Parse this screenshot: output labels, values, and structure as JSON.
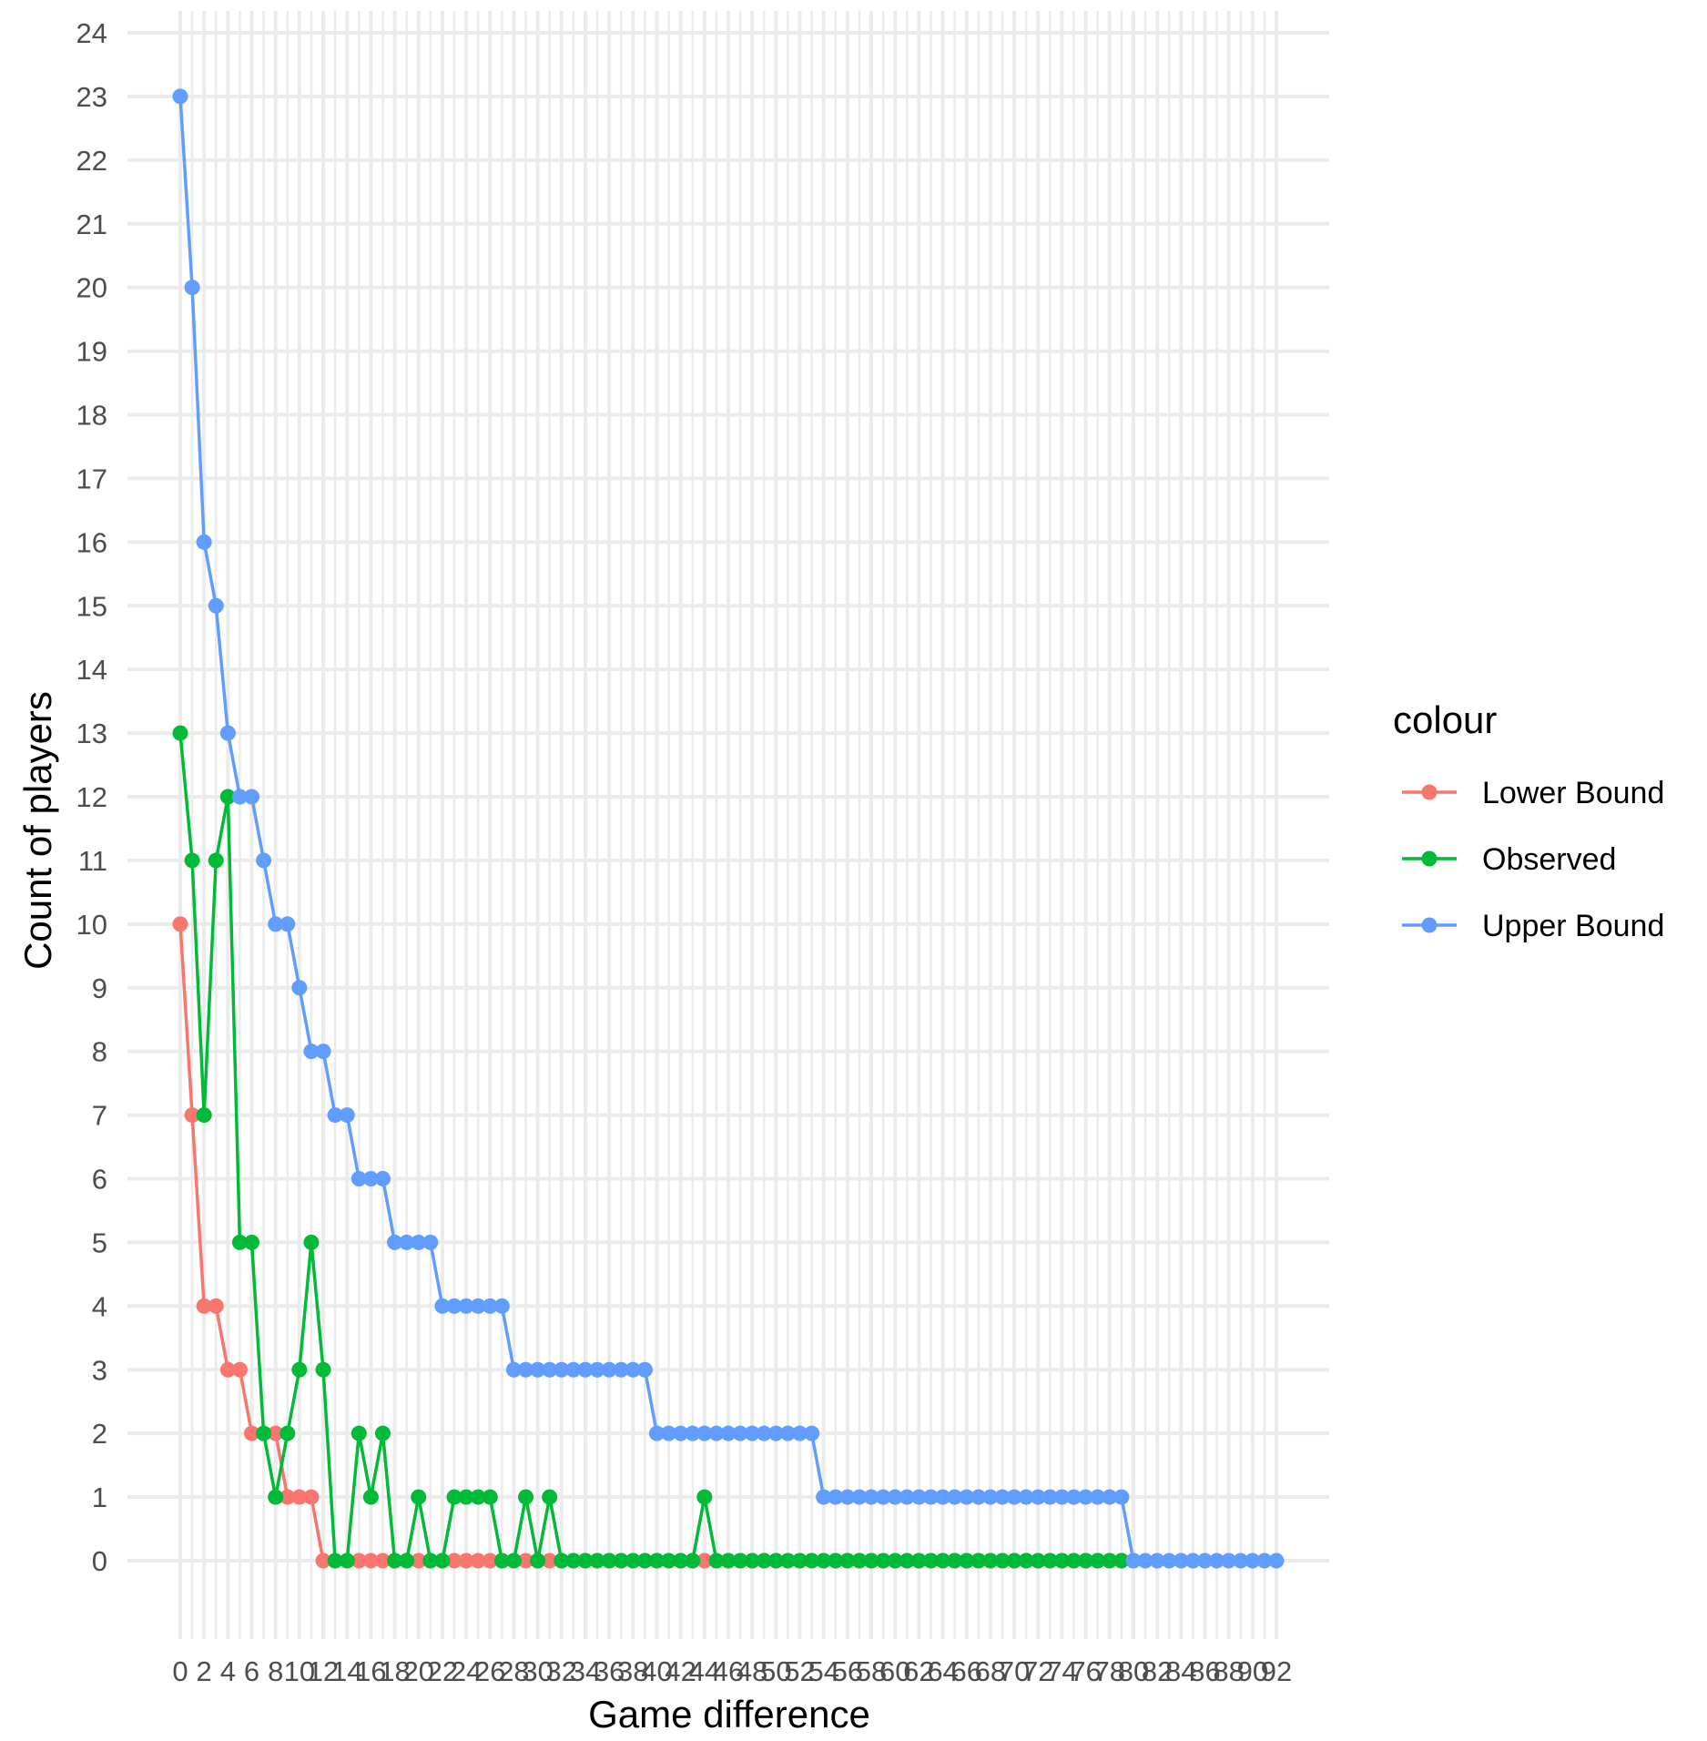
{
  "chart_data": {
    "type": "line",
    "xlabel": "Game difference",
    "ylabel": "Count of players",
    "xlim": [
      0,
      92
    ],
    "ylim": [
      0,
      24
    ],
    "x_ticks": [
      0,
      2,
      4,
      6,
      8,
      10,
      12,
      14,
      16,
      18,
      20,
      22,
      24,
      26,
      28,
      30,
      32,
      34,
      36,
      38,
      40,
      42,
      44,
      46,
      48,
      50,
      52,
      54,
      56,
      58,
      60,
      62,
      64,
      66,
      68,
      70,
      72,
      74,
      76,
      78,
      80,
      82,
      84,
      86,
      88,
      90,
      92
    ],
    "y_ticks": [
      0,
      1,
      2,
      3,
      4,
      5,
      6,
      7,
      8,
      9,
      10,
      11,
      12,
      13,
      14,
      15,
      16,
      17,
      18,
      19,
      20,
      21,
      22,
      23,
      24
    ],
    "grid": true,
    "legend": {
      "title": "colour",
      "position": "right"
    },
    "series": [
      {
        "name": "Lower Bound",
        "color": "#F8766D",
        "x": [
          0,
          1,
          2,
          3,
          4,
          5,
          6,
          7,
          8,
          9,
          10,
          11,
          12,
          13,
          14,
          15,
          16,
          17,
          18,
          19,
          20,
          21,
          22,
          23,
          24,
          25,
          26,
          27,
          28,
          29,
          30,
          31,
          32,
          33,
          34,
          35,
          36,
          37,
          38,
          39,
          40,
          41,
          42,
          43,
          44,
          45,
          46,
          47,
          48,
          49,
          50,
          51,
          52,
          53,
          54,
          55,
          56,
          57,
          58,
          59,
          60,
          61,
          62,
          63,
          64,
          65,
          66,
          67,
          68,
          69,
          70,
          71,
          72,
          73,
          74,
          75,
          76,
          77,
          78,
          79,
          80
        ],
        "y": [
          10,
          7,
          4,
          4,
          3,
          3,
          2,
          2,
          2,
          1,
          1,
          1,
          0,
          0,
          0,
          0,
          0,
          0,
          0,
          0,
          0,
          0,
          0,
          0,
          0,
          0,
          0,
          0,
          0,
          0,
          0,
          0,
          0,
          0,
          0,
          0,
          0,
          0,
          0,
          0,
          0,
          0,
          0,
          0,
          0,
          0,
          0,
          0,
          0,
          0,
          0,
          0,
          0,
          0,
          0,
          0,
          0,
          0,
          0,
          0,
          0,
          0,
          0,
          0,
          0,
          0,
          0,
          0,
          0,
          0,
          0,
          0,
          0,
          0,
          0,
          0,
          0,
          0,
          0,
          0,
          0
        ]
      },
      {
        "name": "Observed",
        "color": "#00BA38",
        "x": [
          0,
          1,
          2,
          3,
          4,
          5,
          6,
          7,
          8,
          9,
          10,
          11,
          12,
          13,
          14,
          15,
          16,
          17,
          18,
          19,
          20,
          21,
          22,
          23,
          24,
          25,
          26,
          27,
          28,
          29,
          30,
          31,
          32,
          33,
          34,
          35,
          36,
          37,
          38,
          39,
          40,
          41,
          42,
          43,
          44,
          45,
          46,
          47,
          48,
          49,
          50,
          51,
          52,
          53,
          54,
          55,
          56,
          57,
          58,
          59,
          60,
          61,
          62,
          63,
          64,
          65,
          66,
          67,
          68,
          69,
          70,
          71,
          72,
          73,
          74,
          75,
          76,
          77,
          78,
          79,
          80
        ],
        "y": [
          13,
          11,
          7,
          11,
          12,
          5,
          5,
          2,
          1,
          2,
          3,
          5,
          3,
          0,
          0,
          2,
          1,
          2,
          0,
          0,
          1,
          0,
          0,
          1,
          1,
          1,
          1,
          0,
          0,
          1,
          0,
          1,
          0,
          0,
          0,
          0,
          0,
          0,
          0,
          0,
          0,
          0,
          0,
          0,
          1,
          0,
          0,
          0,
          0,
          0,
          0,
          0,
          0,
          0,
          0,
          0,
          0,
          0,
          0,
          0,
          0,
          0,
          0,
          0,
          0,
          0,
          0,
          0,
          0,
          0,
          0,
          0,
          0,
          0,
          0,
          0,
          0,
          0,
          0,
          0,
          0
        ]
      },
      {
        "name": "Upper Bound",
        "color": "#619CFF",
        "x": [
          0,
          1,
          2,
          3,
          4,
          5,
          6,
          7,
          8,
          9,
          10,
          11,
          12,
          13,
          14,
          15,
          16,
          17,
          18,
          19,
          20,
          21,
          22,
          23,
          24,
          25,
          26,
          27,
          28,
          29,
          30,
          31,
          32,
          33,
          34,
          35,
          36,
          37,
          38,
          39,
          40,
          41,
          42,
          43,
          44,
          45,
          46,
          47,
          48,
          49,
          50,
          51,
          52,
          53,
          54,
          55,
          56,
          57,
          58,
          59,
          60,
          61,
          62,
          63,
          64,
          65,
          66,
          67,
          68,
          69,
          70,
          71,
          72,
          73,
          74,
          75,
          76,
          77,
          78,
          79,
          80,
          81,
          82,
          83,
          84,
          85,
          86,
          87,
          88,
          89,
          90,
          91,
          92
        ],
        "y": [
          23,
          20,
          16,
          15,
          13,
          12,
          12,
          11,
          10,
          10,
          9,
          8,
          8,
          7,
          7,
          6,
          6,
          6,
          5,
          5,
          5,
          5,
          4,
          4,
          4,
          4,
          4,
          4,
          3,
          3,
          3,
          3,
          3,
          3,
          3,
          3,
          3,
          3,
          3,
          3,
          2,
          2,
          2,
          2,
          2,
          2,
          2,
          2,
          2,
          2,
          2,
          2,
          2,
          2,
          1,
          1,
          1,
          1,
          1,
          1,
          1,
          1,
          1,
          1,
          1,
          1,
          1,
          1,
          1,
          1,
          1,
          1,
          1,
          1,
          1,
          1,
          1,
          1,
          1,
          1,
          0,
          0,
          0,
          0,
          0,
          0,
          0,
          0,
          0,
          0,
          0,
          0,
          0
        ]
      }
    ]
  }
}
